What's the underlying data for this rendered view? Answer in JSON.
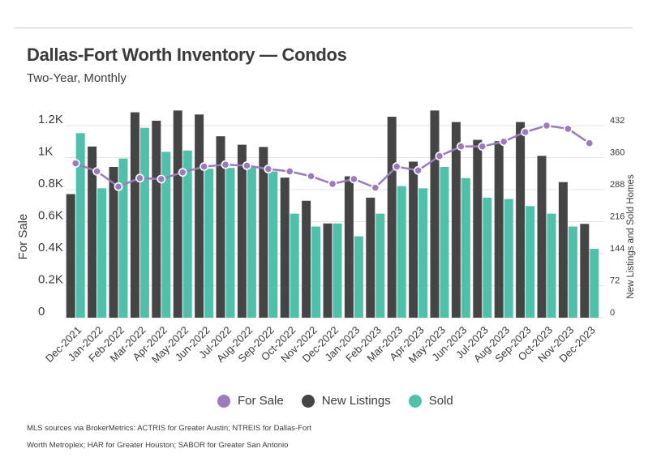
{
  "header": {
    "title": "Dallas-Fort Worth Inventory — Condos",
    "subtitle": "Two-Year, Monthly"
  },
  "legend": {
    "items": [
      {
        "label": "For Sale",
        "color": "#9b7bbd",
        "icon": "purple-circle"
      },
      {
        "label": "New Listings",
        "color": "#454545",
        "icon": "dark-circle"
      },
      {
        "label": "Sold",
        "color": "#4fc1aa",
        "icon": "teal-circle"
      }
    ]
  },
  "footer": {
    "source_line1": "MLS sources via BrokerMetrics: ACTRIS for Greater Austin; NTREIS for Dallas-Fort",
    "source_line2": "Worth Metroplex; HAR for Greater Houston; SABOR for Greater San Antonio"
  },
  "chart_data": {
    "type": "bar",
    "categories": [
      "Dec-2021",
      "Jan-2022",
      "Feb-2022",
      "Mar-2022",
      "Apr-2022",
      "May-2022",
      "Jun-2022",
      "Jul-2022",
      "Aug-2022",
      "Sep-2022",
      "Oct-2022",
      "Nov-2022",
      "Dec-2022",
      "Jan-2023",
      "Feb-2023",
      "Mar-2023",
      "Apr-2023",
      "May-2023",
      "Jun-2023",
      "Jul-2023",
      "Aug-2023",
      "Sep-2023",
      "Oct-2023",
      "Nov-2023",
      "Dec-2023"
    ],
    "series": [
      {
        "name": "For Sale",
        "type": "line",
        "axis": "left",
        "color": "#9b7bbd",
        "values": [
          964,
          914,
          819,
          872,
          866,
          908,
          944,
          956,
          950,
          929,
          914,
          884,
          836,
          866,
          812,
          944,
          920,
          1010,
          1070,
          1070,
          1100,
          1160,
          1200,
          1180,
          1090
        ]
      },
      {
        "name": "New Listings",
        "type": "bar",
        "axis": "right",
        "color": "#454545",
        "values": [
          278,
          385,
          339,
          462,
          443,
          466,
          457,
          408,
          389,
          384,
          315,
          263,
          212,
          318,
          270,
          452,
          351,
          466,
          440,
          400,
          397,
          440,
          364,
          305,
          211
        ]
      },
      {
        "name": "Sold",
        "type": "bar",
        "axis": "right",
        "color": "#4fc1aa",
        "values": [
          415,
          291,
          358,
          427,
          373,
          376,
          335,
          337,
          341,
          329,
          234,
          205,
          212,
          183,
          234,
          296,
          291,
          339,
          314,
          270,
          267,
          251,
          234,
          205,
          155
        ]
      }
    ],
    "left_axis": {
      "label": "For Sale",
      "ticks": [
        "0",
        "0.2K",
        "0.4K",
        "0.6K",
        "0.8K",
        "1K",
        "1.2K"
      ],
      "ylim": [
        0,
        1200
      ]
    },
    "right_axis": {
      "label": "New Listings and Sold Homes",
      "ticks": [
        "0",
        "72",
        "144",
        "216",
        "288",
        "360",
        "432"
      ],
      "ylim": [
        0,
        432
      ]
    },
    "grid": true,
    "legend_position": "bottom"
  }
}
